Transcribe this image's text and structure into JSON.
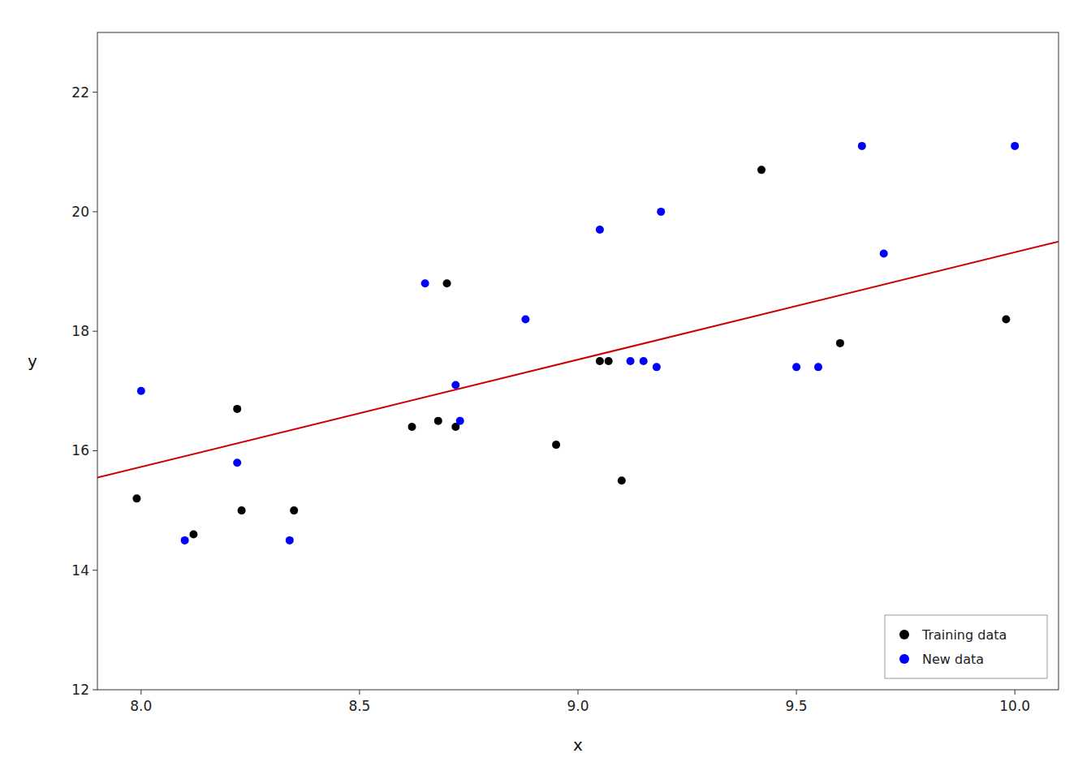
{
  "chart_data": {
    "type": "scatter",
    "xlabel": "x",
    "ylabel": "y",
    "series": [
      {
        "name": "Training data",
        "type": "scatter",
        "color": "#000000",
        "marker": "circle",
        "x": [
          7.99,
          8.12,
          8.22,
          8.23,
          8.35,
          8.62,
          8.68,
          8.7,
          8.72,
          8.95,
          9.05,
          9.07,
          9.1,
          9.42,
          9.6,
          9.98
        ],
        "values": [
          15.2,
          14.6,
          16.7,
          15.0,
          15.0,
          16.4,
          16.5,
          18.8,
          16.4,
          16.1,
          17.5,
          17.5,
          15.5,
          20.7,
          17.8,
          18.2
        ]
      },
      {
        "name": "New data",
        "type": "scatter",
        "color": "#0000ff",
        "marker": "circle",
        "x": [
          8.0,
          8.1,
          8.22,
          8.34,
          8.65,
          8.72,
          8.73,
          8.88,
          9.05,
          9.12,
          9.15,
          9.18,
          9.19,
          9.5,
          9.55,
          9.65,
          9.7,
          10.0
        ],
        "values": [
          17.0,
          14.5,
          15.8,
          14.5,
          18.8,
          17.1,
          16.5,
          18.2,
          19.7,
          17.5,
          17.5,
          17.4,
          20.0,
          17.4,
          17.4,
          21.1,
          19.3,
          21.1
        ]
      },
      {
        "type": "line",
        "color": "#cc0000",
        "line_style": "solid",
        "x": [
          7.9,
          10.1
        ],
        "values": [
          15.55,
          19.5
        ]
      }
    ],
    "xlim": [
      7.9,
      10.1
    ],
    "ylim": [
      12,
      23
    ],
    "xticks": [
      {
        "value": 8.0,
        "label": "8.0"
      },
      8.5,
      {
        "value": 9.0,
        "label": "9.0"
      },
      9.5,
      {
        "value": 10.0,
        "label": "10.0"
      }
    ],
    "yticks": [
      12,
      14,
      16,
      18,
      20,
      22
    ],
    "grid": false,
    "legend": "lower right"
  }
}
